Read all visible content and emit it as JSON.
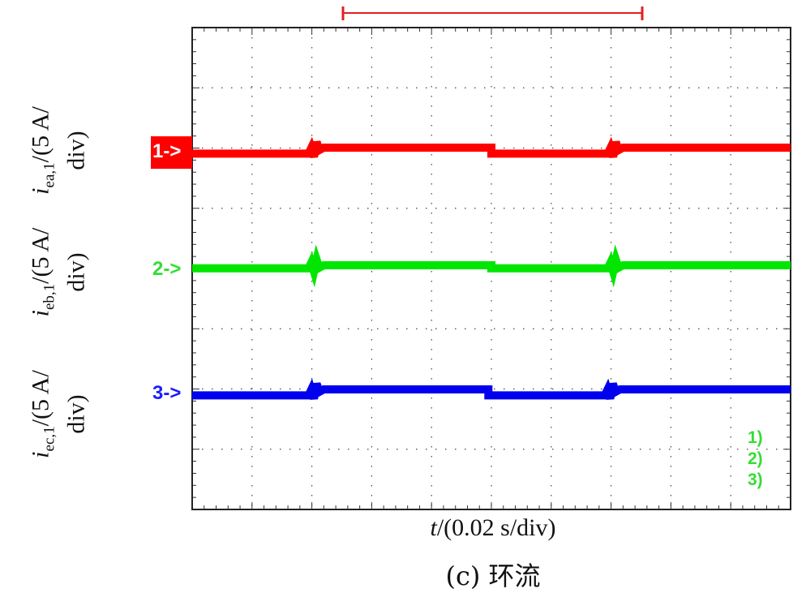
{
  "chart_data": {
    "type": "line",
    "subtype": "oscilloscope-capture",
    "xlabel_var": "t",
    "xlabel_unit": "/(0.02 s/div)",
    "caption": "(c) 环流",
    "x_divisions": 10,
    "y_divisions": 8,
    "grid": "dotted",
    "series": [
      {
        "marker": "1->",
        "label_var": "i",
        "label_sub": "ea,1",
        "label_unit": "/(5 A/",
        "label_unit2": "div)",
        "color": "#ff0000",
        "x_div": [
          0,
          1.9,
          2.2,
          5.0,
          6.9,
          7.2,
          10
        ],
        "offset_div": [
          -0.1,
          -0.1,
          0.0,
          -0.1,
          -0.1,
          0.0,
          0.0
        ]
      },
      {
        "marker": "2->",
        "label_var": "i",
        "label_sub": "eb,1",
        "label_unit": "/(5 A/",
        "label_unit2": "div)",
        "color": "#00e600",
        "x_div": [
          0,
          1.9,
          2.2,
          5.0,
          6.9,
          7.2,
          10
        ],
        "offset_div": [
          -0.05,
          -0.05,
          0.0,
          -0.05,
          -0.05,
          0.0,
          0.0
        ]
      },
      {
        "marker": "3->",
        "label_var": "i",
        "label_sub": "ec,1",
        "label_unit": "/(5 A/",
        "label_unit2": "div)",
        "color": "#0000ee",
        "x_div": [
          0,
          1.9,
          2.2,
          4.95,
          6.85,
          7.15,
          10
        ],
        "offset_div": [
          -0.1,
          -0.1,
          0.0,
          -0.1,
          -0.1,
          0.0,
          0.0
        ]
      }
    ],
    "channel_legend": [
      "1)",
      "2)",
      "3)"
    ],
    "legend_color": "#33dd33",
    "trigger_bracket_color": "#e02020"
  }
}
